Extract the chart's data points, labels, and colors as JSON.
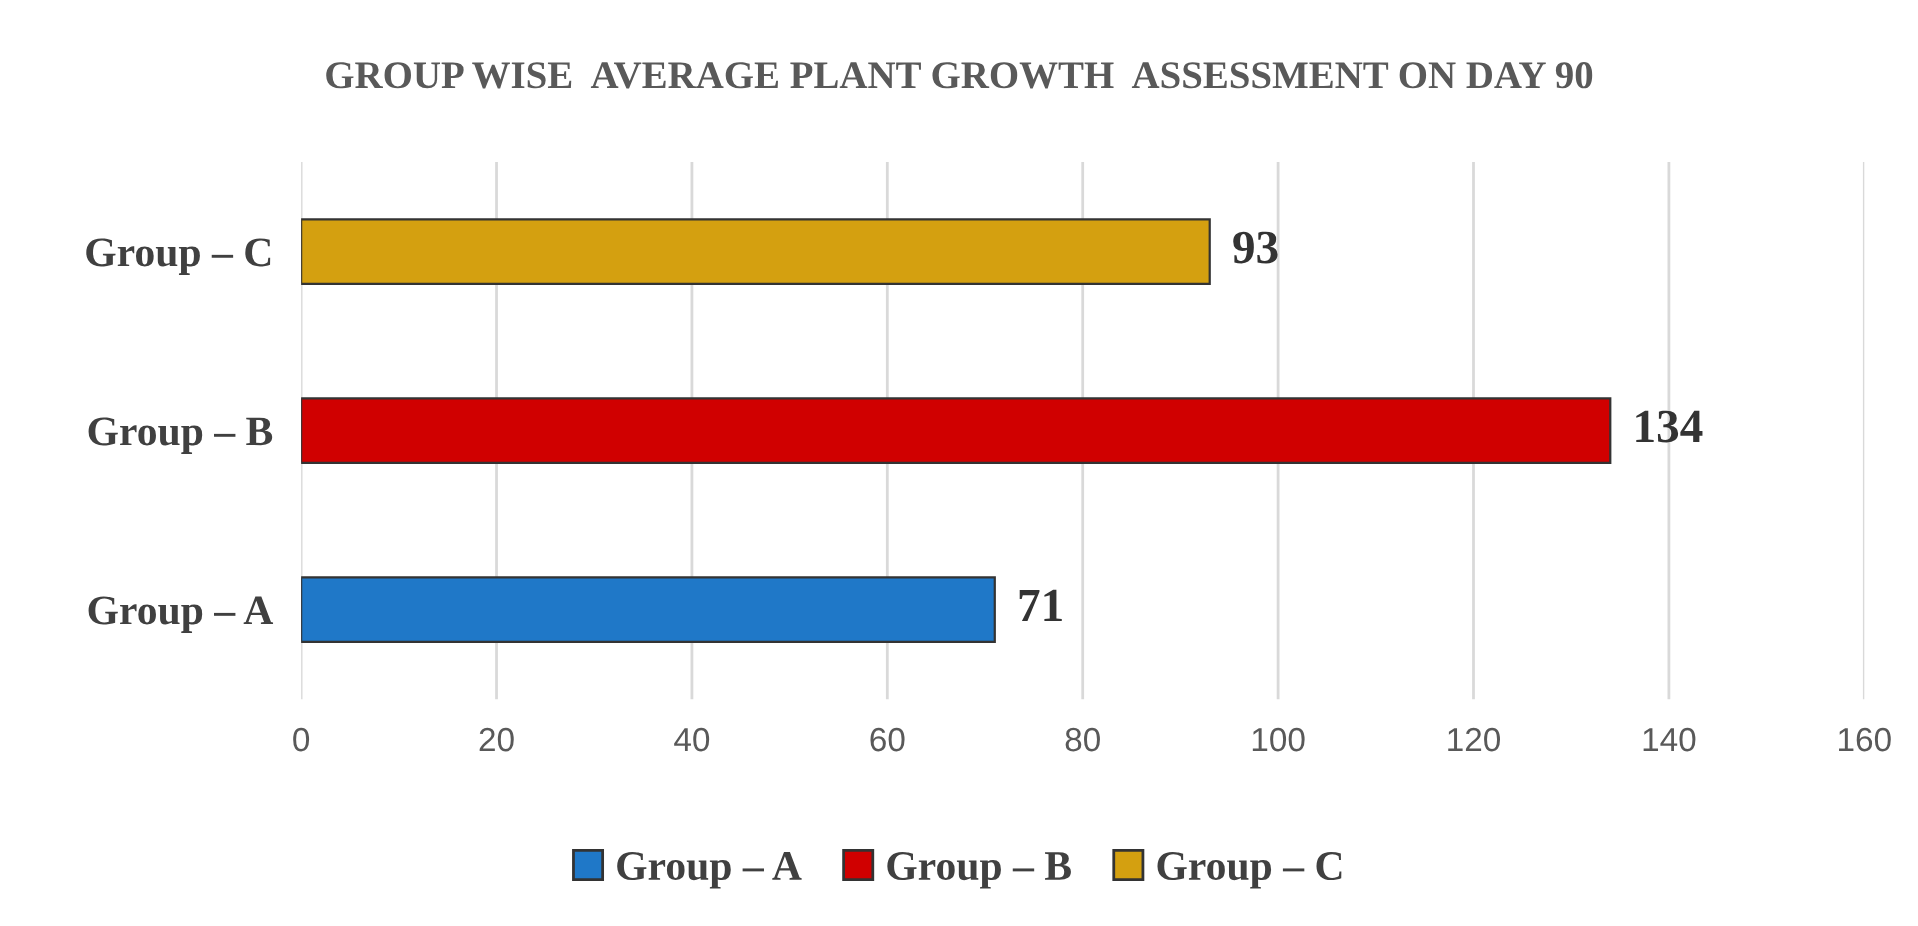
{
  "chart_data": {
    "type": "bar",
    "orientation": "horizontal",
    "title": "GROUP WISE  AVERAGE PLANT GROWTH  ASSESSMENT ON DAY 90",
    "categories": [
      "Group – C",
      "Group – B",
      "Group – A"
    ],
    "series": [
      {
        "name": "Group – A",
        "color": "#1f78c8",
        "values": [
          null,
          null,
          71
        ]
      },
      {
        "name": "Group – B",
        "color": "#d00000",
        "values": [
          null,
          134,
          null
        ]
      },
      {
        "name": "Group – C",
        "color": "#d4a010",
        "values": [
          93,
          null,
          null
        ]
      }
    ],
    "xlim": [
      0,
      160
    ],
    "xticks": [
      0,
      20,
      40,
      60,
      80,
      100,
      120,
      140,
      160
    ],
    "grid": "x",
    "legend": "bottom",
    "data_labels": true
  }
}
